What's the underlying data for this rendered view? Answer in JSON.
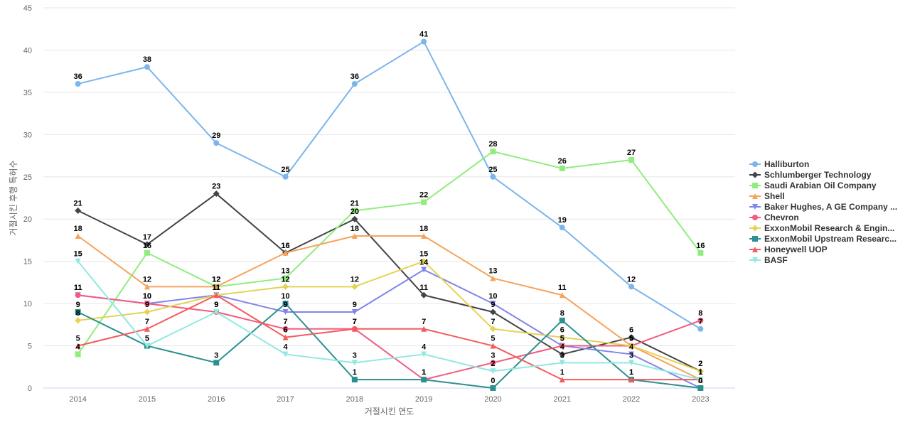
{
  "chart_data": {
    "type": "line",
    "title": "",
    "xlabel": "거절시킨 연도",
    "ylabel": "거절시킨 후행 특허수",
    "categories": [
      "2014",
      "2015",
      "2016",
      "2017",
      "2018",
      "2019",
      "2020",
      "2021",
      "2022",
      "2023"
    ],
    "ylim": [
      0,
      45
    ],
    "yticks": [
      0,
      5,
      10,
      15,
      20,
      25,
      30,
      35,
      40,
      45
    ],
    "grid": true,
    "legend_position": "right",
    "series": [
      {
        "name": "Halliburton",
        "color": "#7cb5ec",
        "marker": "circle",
        "values": [
          36,
          38,
          29,
          25,
          36,
          41,
          25,
          19,
          12,
          7
        ]
      },
      {
        "name": "Schlumberger Technology",
        "color": "#434348",
        "marker": "diamond",
        "values": [
          21,
          17,
          23,
          16,
          20,
          11,
          9,
          4,
          6,
          2
        ]
      },
      {
        "name": "Saudi Arabian Oil Company",
        "color": "#90ed7d",
        "marker": "square",
        "values": [
          4,
          16,
          12,
          13,
          21,
          22,
          28,
          26,
          27,
          16
        ]
      },
      {
        "name": "Shell",
        "color": "#f7a35c",
        "marker": "triangle",
        "values": [
          18,
          12,
          12,
          16,
          18,
          18,
          13,
          11,
          5,
          1
        ]
      },
      {
        "name": "Baker Hughes, A GE Company ...",
        "color": "#8085e9",
        "marker": "triangle-down",
        "values": [
          11,
          10,
          11,
          9,
          9,
          14,
          10,
          5,
          4,
          0
        ]
      },
      {
        "name": "Chevron",
        "color": "#f15c80",
        "marker": "circle",
        "values": [
          11,
          10,
          9,
          7,
          7,
          1,
          3,
          5,
          5,
          8
        ]
      },
      {
        "name": "ExxonMobil Research & Engin...",
        "color": "#e4d354",
        "marker": "diamond",
        "values": [
          8,
          9,
          11,
          12,
          12,
          15,
          7,
          6,
          5,
          2
        ]
      },
      {
        "name": "ExxonMobil Upstream Researc...",
        "color": "#2b908f",
        "marker": "square",
        "values": [
          9,
          5,
          3,
          10,
          1,
          1,
          0,
          8,
          1,
          0
        ]
      },
      {
        "name": "Honeywell UOP",
        "color": "#f45b5b",
        "marker": "triangle",
        "values": [
          5,
          7,
          11,
          6,
          7,
          7,
          5,
          1,
          1,
          1
        ]
      },
      {
        "name": "BASF",
        "color": "#91e8e1",
        "marker": "triangle-down",
        "values": [
          15,
          5,
          9,
          4,
          3,
          4,
          2,
          3,
          3,
          1
        ]
      }
    ]
  }
}
